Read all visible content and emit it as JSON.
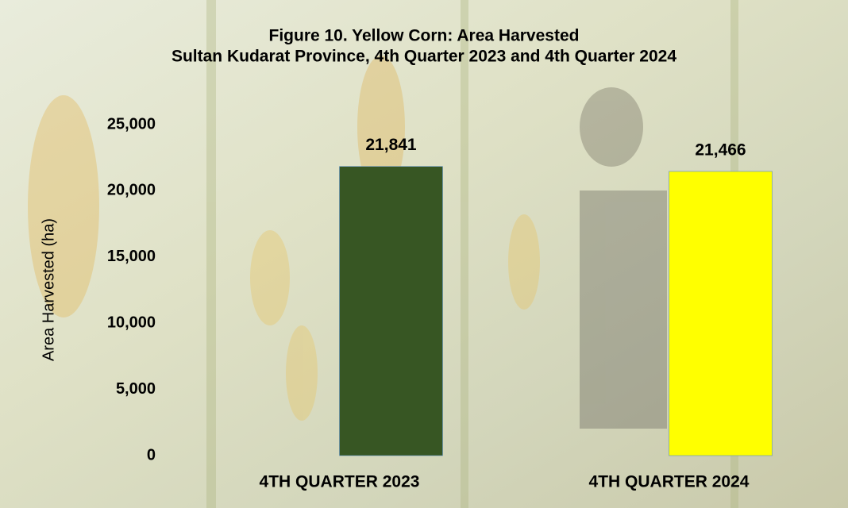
{
  "chart_data": {
    "type": "bar",
    "title": "Figure 10. Yellow Corn: Area Harvested",
    "subtitle": "Sultan Kudarat Province, 4th Quarter 2023 and 4th Quarter 2024",
    "y_label": "Area Harvested (ha)",
    "categories": [
      "4TH QUARTER 2023",
      "4TH QUARTER 2024"
    ],
    "values": [
      21841,
      21466
    ],
    "value_labels": [
      "21,841",
      "21,466"
    ],
    "colors": [
      "#375623",
      "#ffff00"
    ],
    "ylim": [
      0,
      25000
    ],
    "yticks": [
      0,
      {
        "value": 5000,
        "label": "5,000"
      },
      {
        "value": 10000,
        "label": "10,000"
      },
      {
        "value": 15000,
        "label": "15,000"
      },
      {
        "value": 20000,
        "label": "20,000"
      },
      {
        "value": 25000,
        "label": "25,000"
      }
    ],
    "grid": false
  }
}
